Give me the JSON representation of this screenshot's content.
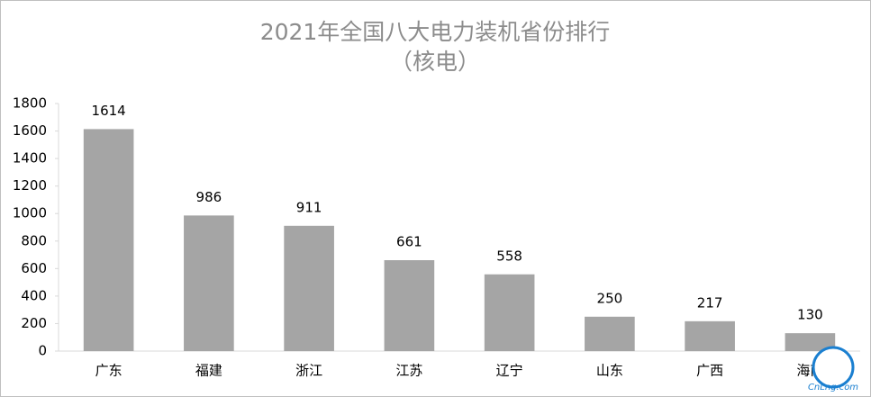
{
  "chart_data": {
    "type": "bar",
    "title": "2021年全国八大电力装机省份排行",
    "subtitle": "（核电）",
    "categories": [
      "广东",
      "福建",
      "浙江",
      "江苏",
      "辽宁",
      "山东",
      "广西",
      "海南"
    ],
    "values": [
      1614,
      986,
      911,
      661,
      558,
      250,
      217,
      130
    ],
    "color": "#a5a5a5",
    "ylim": [
      0,
      1800
    ],
    "yticks": [
      0,
      200,
      400,
      600,
      800,
      1000,
      1200,
      1400,
      1600,
      1800
    ],
    "grid": false,
    "watermark": "CnLng.com"
  }
}
